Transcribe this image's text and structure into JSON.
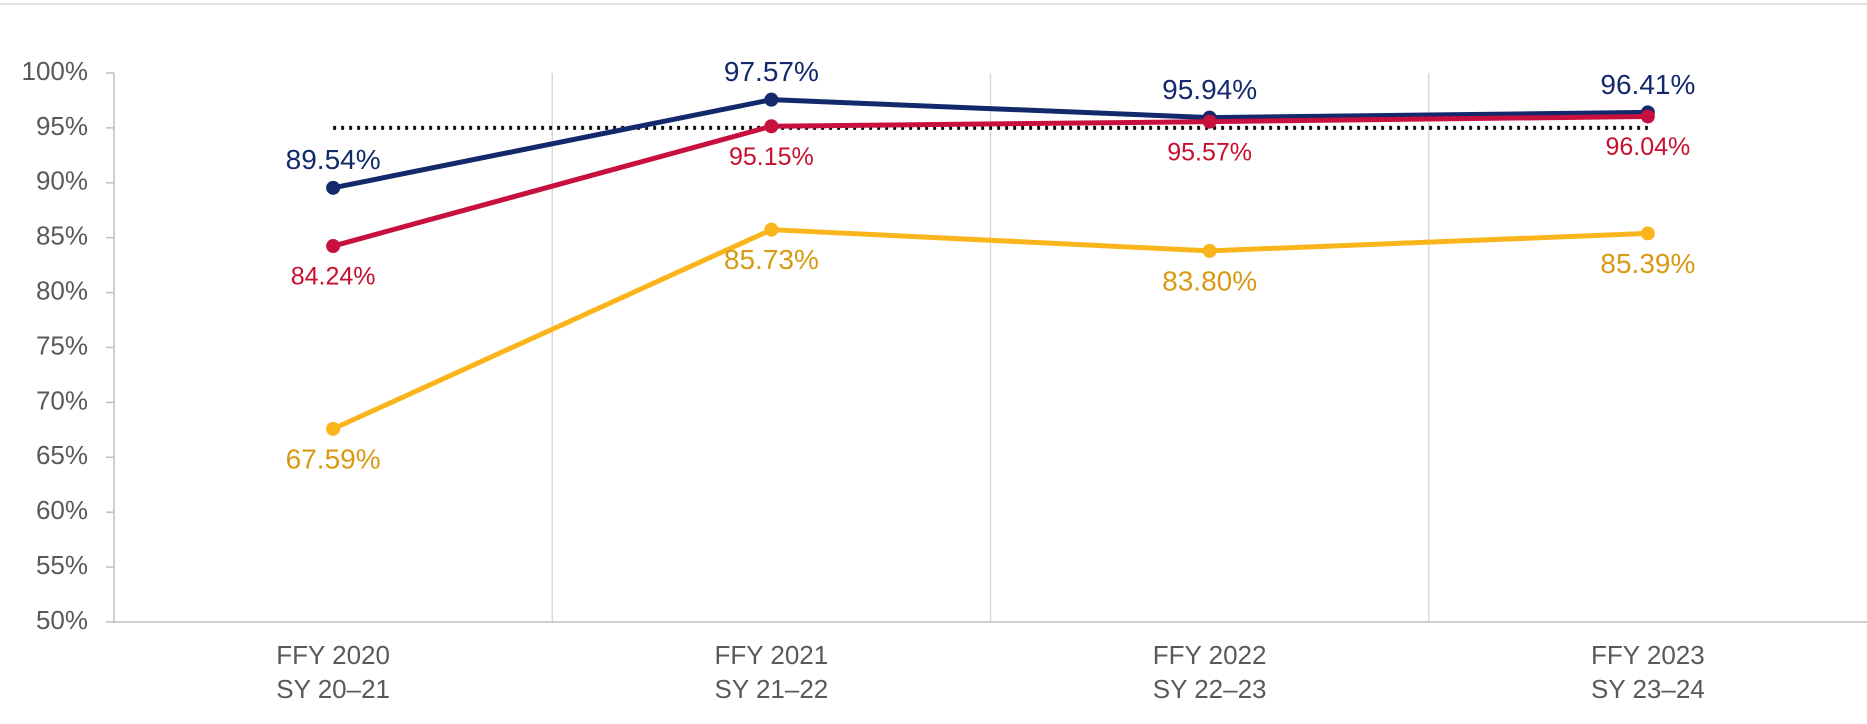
{
  "chart_data": {
    "type": "line",
    "categories": [
      [
        "FFY 2020",
        "SY 20–21"
      ],
      [
        "FFY 2021",
        "SY 21–22"
      ],
      [
        "FFY 2022",
        "SY 22–23"
      ],
      [
        "FFY 2023",
        "SY 23–24"
      ]
    ],
    "series": [
      {
        "color": "#13296b",
        "label_color": "#13296b",
        "label_position": "above",
        "values": [
          89.54,
          97.57,
          95.94,
          96.41
        ],
        "value_labels": [
          "89.54%",
          "97.57%",
          "95.94%",
          "96.41%"
        ]
      },
      {
        "color": "#c8103f",
        "label_color": "#c8102e",
        "label_position": "below",
        "values": [
          84.24,
          95.15,
          95.57,
          96.04
        ],
        "value_labels": [
          "84.24%",
          "95.15%",
          "95.57%",
          "96.04%"
        ]
      },
      {
        "color": "#fbb51c",
        "label_color": "#d89a12",
        "label_position": "below",
        "values": [
          67.59,
          85.73,
          83.8,
          85.39
        ],
        "value_labels": [
          "67.59%",
          "85.73%",
          "83.80%",
          "85.39%"
        ]
      }
    ],
    "target_line": {
      "value": 95,
      "color": "#111111",
      "style": "dotted"
    },
    "ylim": [
      50,
      100
    ],
    "yticks": [
      {
        "value": 50,
        "label": "50%"
      },
      {
        "value": 55,
        "label": "55%"
      },
      {
        "value": 60,
        "label": "60%"
      },
      {
        "value": 65,
        "label": "65%"
      },
      {
        "value": 70,
        "label": "70%"
      },
      {
        "value": 75,
        "label": "75%"
      },
      {
        "value": 80,
        "label": "80%"
      },
      {
        "value": 85,
        "label": "85%"
      },
      {
        "value": 90,
        "label": "90%"
      },
      {
        "value": 95,
        "label": "95%"
      },
      {
        "value": 100,
        "label": "100%"
      }
    ],
    "grid": false
  }
}
